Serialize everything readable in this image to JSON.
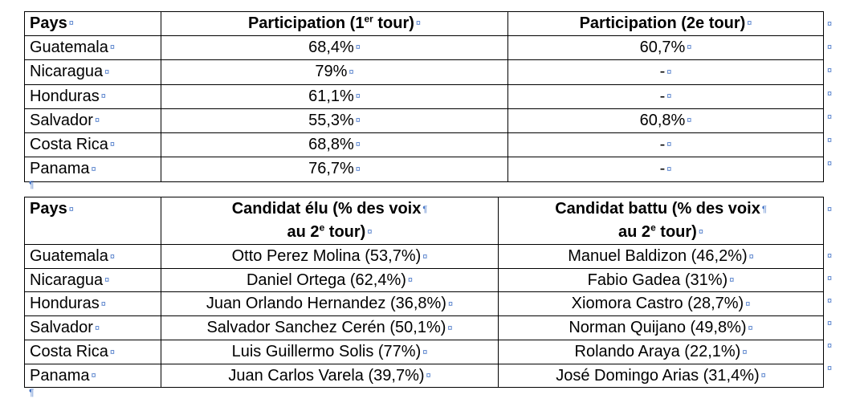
{
  "marks": {
    "cell": "¤",
    "para": "¶"
  },
  "participation": {
    "headers": {
      "pays": "Pays",
      "tour1_pre": "Participation (1",
      "tour1_sup": "er",
      "tour1_post": " tour)",
      "tour2": "Participation (2e tour)"
    },
    "rows": [
      {
        "pays": "Guatemala",
        "t1": "68,4%",
        "t2": "60,7%"
      },
      {
        "pays": "Nicaragua",
        "t1": "79%",
        "t2": "-"
      },
      {
        "pays": "Honduras",
        "t1": "61,1%",
        "t2": "-"
      },
      {
        "pays": "Salvador",
        "t1": "55,3%",
        "t2": "60,8%"
      },
      {
        "pays": "Costa Rica",
        "t1": "68,8%",
        "t2": "-"
      },
      {
        "pays": "Panama",
        "t1": "76,7%",
        "t2": "-"
      }
    ]
  },
  "candidats": {
    "headers": {
      "pays": "Pays",
      "elu_line1": "Candidat élu (% des voix",
      "elu_line2_pre": "au 2",
      "elu_line2_sup": "e",
      "elu_line2_post": " tour)",
      "battu_line1": "Candidat battu (% des voix",
      "battu_line2_pre": "au 2",
      "battu_line2_sup": "e",
      "battu_line2_post": " tour)"
    },
    "rows": [
      {
        "pays": "Guatemala",
        "elu": "Otto Perez Molina (53,7%)",
        "battu": "Manuel Baldizon (46,2%)"
      },
      {
        "pays": "Nicaragua",
        "elu": "Daniel Ortega (62,4%)",
        "battu": "Fabio Gadea (31%)"
      },
      {
        "pays": "Honduras",
        "elu": "Juan Orlando Hernandez (36,8%)",
        "battu": "Xiomora Castro (28,7%)"
      },
      {
        "pays": "Salvador",
        "elu": "Salvador Sanchez Cerén (50,1%)",
        "battu": "Norman Quijano (49,8%)"
      },
      {
        "pays": "Costa Rica",
        "elu": "Luis Guillermo Solis (77%)",
        "battu": "Rolando Araya (22,1%)"
      },
      {
        "pays": "Panama",
        "elu": "Juan Carlos Varela (39,7%)",
        "battu": "José Domingo Arias (31,4%)"
      }
    ]
  }
}
